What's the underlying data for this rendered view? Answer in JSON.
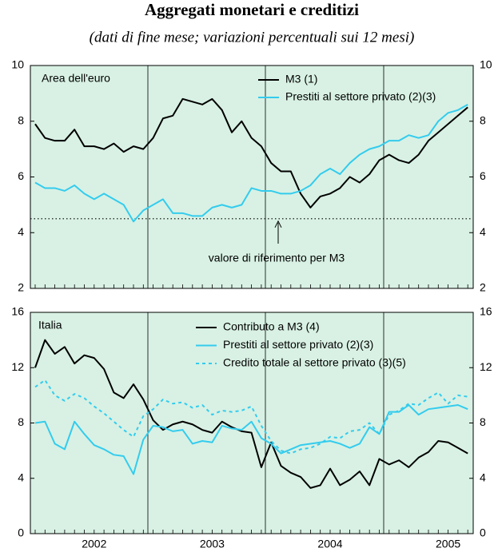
{
  "title": "Aggregati monetari e creditizi",
  "subtitle": "(dati di fine mese; variazioni percentuali sui 12 mesi)",
  "chart_data": [
    {
      "type": "line",
      "panel_label": "Area dell'euro",
      "background": "#d8f1e4",
      "legend": "upper right",
      "categories": [
        null,
        null,
        null,
        null,
        null,
        null,
        "2002",
        null,
        null,
        null,
        null,
        null,
        null,
        null,
        null,
        null,
        null,
        null,
        "2003",
        null,
        null,
        null,
        null,
        null,
        null,
        null,
        null,
        null,
        null,
        null,
        "2004",
        null,
        null,
        null,
        null,
        null,
        null,
        null,
        null,
        null,
        null,
        null,
        "2005",
        null,
        null
      ],
      "series": [
        {
          "name": "M3 (1)",
          "color": "#000000",
          "linestyle": "solid",
          "values": [
            7.9,
            7.4,
            7.3,
            7.3,
            7.7,
            7.1,
            7.1,
            7.0,
            7.2,
            6.9,
            7.1,
            7.0,
            7.4,
            8.1,
            8.2,
            8.8,
            8.7,
            8.6,
            8.8,
            8.4,
            7.6,
            8.0,
            7.4,
            7.1,
            6.5,
            6.2,
            6.2,
            5.4,
            4.9,
            5.3,
            5.4,
            5.6,
            6.0,
            5.8,
            6.1,
            6.6,
            6.8,
            6.6,
            6.5,
            6.8,
            7.3,
            7.6,
            7.9,
            8.2,
            8.5
          ]
        },
        {
          "name": "Prestiti al settore privato (2)(3)",
          "color": "#33ccee",
          "linestyle": "solid",
          "values": [
            5.8,
            5.6,
            5.6,
            5.5,
            5.7,
            5.4,
            5.2,
            5.4,
            5.2,
            5.0,
            4.4,
            4.8,
            5.0,
            5.2,
            4.7,
            4.7,
            4.6,
            4.6,
            4.9,
            5.0,
            4.9,
            5.0,
            5.6,
            5.5,
            5.5,
            5.4,
            5.4,
            5.5,
            5.7,
            6.1,
            6.3,
            6.1,
            6.5,
            6.8,
            7.0,
            7.1,
            7.3,
            7.3,
            7.5,
            7.4,
            7.5,
            8.0,
            8.3,
            8.4,
            8.6
          ]
        }
      ],
      "reference_line": 4.5,
      "annotation": "valore di riferimento per M3",
      "ylim": [
        2,
        10
      ],
      "yticks": [
        2,
        4,
        6,
        8,
        10
      ]
    },
    {
      "type": "line",
      "panel_label": "Italia",
      "background": "#d8f1e4",
      "legend": "upper right",
      "categories": [
        null,
        null,
        null,
        null,
        null,
        null,
        "2002",
        null,
        null,
        null,
        null,
        null,
        null,
        null,
        null,
        null,
        null,
        null,
        "2003",
        null,
        null,
        null,
        null,
        null,
        null,
        null,
        null,
        null,
        null,
        null,
        "2004",
        null,
        null,
        null,
        null,
        null,
        null,
        null,
        null,
        null,
        null,
        null,
        "2005",
        null,
        null
      ],
      "series": [
        {
          "name": "Contributo a M3 (4)",
          "color": "#000000",
          "linestyle": "solid",
          "values": [
            12,
            14,
            13,
            13.5,
            12.3,
            12.9,
            12.7,
            11.9,
            10.2,
            9.8,
            10.8,
            9.7,
            8.2,
            7.5,
            7.9,
            8.1,
            7.9,
            7.5,
            7.3,
            8.1,
            7.7,
            7.4,
            7.3,
            4.8,
            6.6,
            4.9,
            4.4,
            4.1,
            3.3,
            3.5,
            4.7,
            3.5,
            3.9,
            4.5,
            3.5,
            5.4,
            5.0,
            5.3,
            4.8,
            5.5,
            5.9,
            6.7,
            6.6,
            6.2,
            5.8
          ]
        },
        {
          "name": "Prestiti al settore privato (2)(3)",
          "color": "#33ccee",
          "linestyle": "solid",
          "values": [
            8.0,
            8.1,
            6.5,
            6.1,
            8.1,
            7.2,
            6.4,
            6.1,
            5.7,
            5.6,
            4.3,
            6.8,
            7.8,
            7.7,
            7.4,
            7.5,
            6.5,
            6.7,
            6.6,
            7.8,
            7.6,
            7.5,
            8.1,
            6.9,
            6.5,
            5.8,
            6.1,
            6.4,
            6.5,
            6.6,
            6.7,
            6.5,
            6.2,
            6.5,
            7.7,
            7.2,
            8.8,
            8.8,
            9.3,
            8.6,
            9.0,
            9.1,
            9.2,
            9.3,
            9.0
          ]
        },
        {
          "name": "Credito totale al settore privato (3)(5)",
          "color": "#33ccee",
          "linestyle": "dotted",
          "values": [
            10.6,
            11.1,
            10.0,
            9.6,
            10.1,
            9.8,
            9.2,
            8.7,
            8.1,
            7.5,
            7.0,
            8.5,
            9.0,
            9.7,
            9.4,
            9.5,
            9.1,
            9.3,
            8.6,
            8.9,
            8.8,
            8.9,
            9.2,
            7.8,
            6.7,
            6.0,
            5.8,
            6.1,
            6.2,
            6.5,
            7.0,
            6.9,
            7.4,
            7.5,
            8.0,
            7.2,
            8.6,
            8.9,
            9.4,
            9.3,
            9.8,
            10.2,
            9.4,
            10.0,
            9.9
          ]
        }
      ],
      "ylim": [
        0,
        16
      ],
      "yticks": [
        0,
        4,
        8,
        12,
        16
      ]
    }
  ]
}
